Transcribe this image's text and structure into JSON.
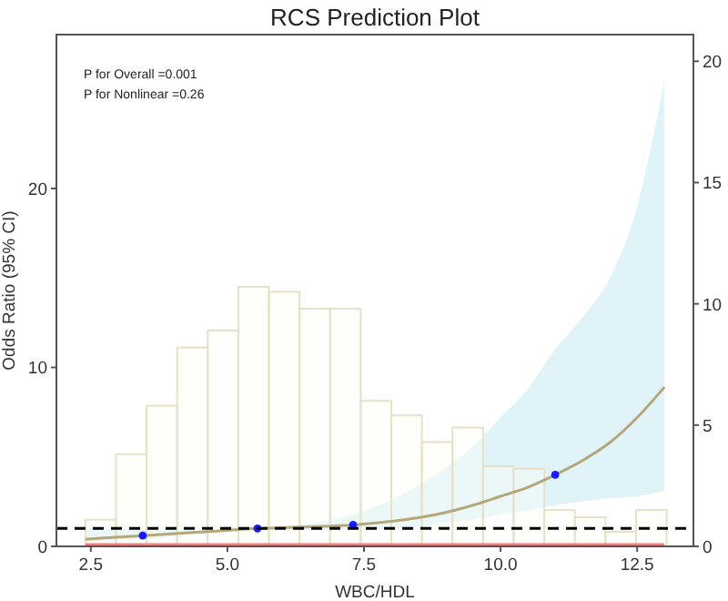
{
  "chart_data": {
    "type": "line",
    "title": "RCS Prediction Plot",
    "xlabel": "WBC/HDL",
    "ylabel": "Odds Ratio (95% CI)",
    "annotations": [
      "P for Overall =0.001",
      "P for Nonlinear =0.26"
    ],
    "xlim": [
      1.87,
      13.53
    ],
    "xticks": [
      2.5,
      {
        "value": 5,
        "label": "5.0"
      },
      7.5,
      {
        "value": 10,
        "label": "10.0"
      },
      12.5
    ],
    "ylim": [
      0,
      28.6
    ],
    "yticks": [
      0,
      10,
      20
    ],
    "y2lim": [
      0,
      21.1
    ],
    "y2ticks": [
      0,
      5,
      10,
      15,
      20
    ],
    "grid": false,
    "ref_lines": [
      {
        "axis": "y",
        "value": 1,
        "color": "#000000",
        "line_style": "dashed"
      }
    ],
    "series": [
      {
        "type": "histogram",
        "axis": "y2",
        "color": "#fdfcf4",
        "bins": [
          2.4,
          2.96,
          3.52,
          4.08,
          4.64,
          5.2,
          5.76,
          6.32,
          6.88,
          7.44,
          8.0,
          8.56,
          9.12,
          9.68,
          10.24,
          10.8,
          11.36,
          11.92,
          12.48,
          13.04
        ],
        "values": [
          1.1,
          3.8,
          5.8,
          8.2,
          8.9,
          10.7,
          10.5,
          9.8,
          9.8,
          6.0,
          5.4,
          4.3,
          4.9,
          3.3,
          3.2,
          1.5,
          1.2,
          0.6,
          1.5
        ]
      },
      {
        "type": "line",
        "color": "#f08080",
        "x": [
          2.4,
          13.0
        ],
        "values": [
          0.1,
          0.1
        ]
      },
      {
        "color": "#b5a77a",
        "x": [
          2.4,
          3.45,
          4.5,
          5.55,
          6.5,
          7.3,
          8.0,
          8.5,
          9.0,
          9.5,
          10.0,
          10.5,
          11.0,
          11.5,
          12.0,
          12.5,
          13.0
        ],
        "values": [
          0.4,
          0.6,
          0.8,
          1.0,
          1.1,
          1.2,
          1.4,
          1.6,
          1.9,
          2.3,
          2.8,
          3.3,
          4.0,
          4.8,
          5.8,
          7.2,
          8.9
        ],
        "lower": [
          0.3,
          0.4,
          0.7,
          1.0,
          0.9,
          0.9,
          1.0,
          1.1,
          1.3,
          1.5,
          1.8,
          2.0,
          2.3,
          2.5,
          2.7,
          2.8,
          3.1
        ],
        "upper": [
          1.0,
          0.9,
          0.9,
          1.0,
          1.3,
          1.8,
          2.6,
          3.4,
          4.4,
          5.6,
          7.2,
          8.8,
          11.0,
          12.8,
          15.0,
          19.0,
          26.1
        ]
      },
      {
        "type": "scatter",
        "color": "#1a1aff",
        "marker": "circle",
        "x": [
          3.45,
          5.55,
          7.3,
          11.0
        ],
        "values": [
          0.6,
          1.0,
          1.2,
          4.0
        ]
      }
    ]
  }
}
